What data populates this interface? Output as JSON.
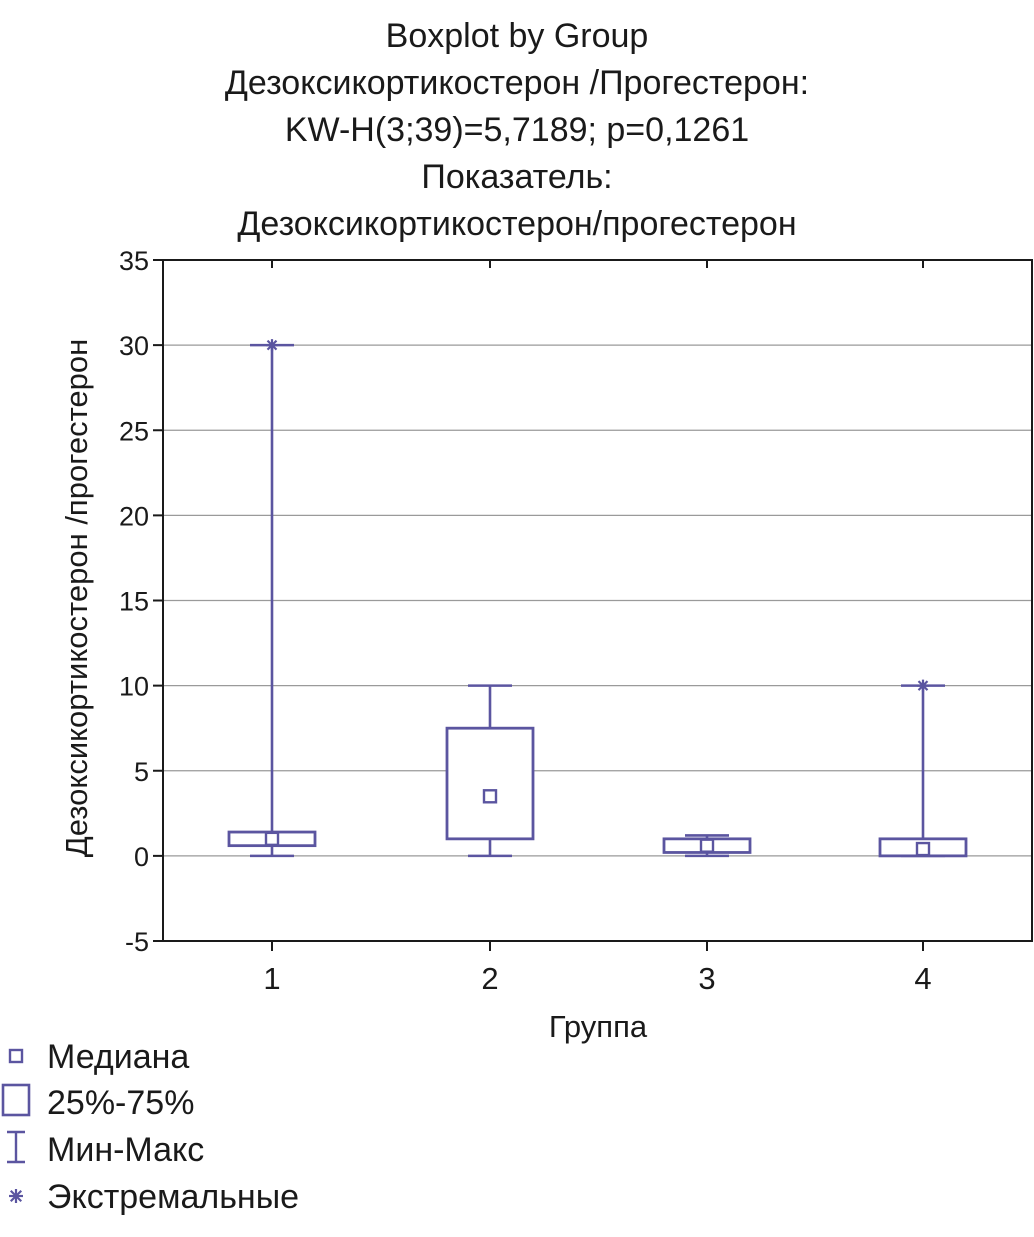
{
  "chart_data": {
    "type": "boxplot",
    "title_lines": [
      "Boxplot by Group",
      "Дезоксикортикостерон /Прогестерон:",
      "KW-H(3;39)=5,7189; p=0,1261",
      "Показатель:",
      "Дезоксикортикостерон/прогестерон"
    ],
    "xlabel": "Группа",
    "ylabel": "Дезоксикортикостерон /прогестерон",
    "ylim": [
      -5,
      35
    ],
    "yticks": [
      "35",
      "30",
      "25",
      "20",
      "15",
      "10",
      "5",
      "0",
      "-5"
    ],
    "ytick_values": [
      35,
      30,
      25,
      20,
      15,
      10,
      5,
      0,
      -5
    ],
    "categories": [
      "1",
      "2",
      "3",
      "4"
    ],
    "grid": true,
    "color": "#5b55a0",
    "series": [
      {
        "group": "1",
        "min": 0.0,
        "q1": 0.6,
        "median": 1.0,
        "q3": 1.4,
        "max": 30.0,
        "extreme": 30.0
      },
      {
        "group": "2",
        "min": 0.0,
        "q1": 1.0,
        "median": 3.5,
        "q3": 7.5,
        "max": 10.0,
        "extreme": null
      },
      {
        "group": "3",
        "min": 0.0,
        "q1": 0.2,
        "median": 0.6,
        "q3": 1.0,
        "max": 1.2,
        "extreme": null
      },
      {
        "group": "4",
        "min": 0.0,
        "q1": 0.0,
        "median": 0.4,
        "q3": 1.0,
        "max": 10.0,
        "extreme": 10.0
      }
    ],
    "legend": {
      "position": "bottom-left",
      "items": [
        {
          "symbol": "median",
          "label": "Медиана"
        },
        {
          "symbol": "box",
          "label": "25%-75%"
        },
        {
          "symbol": "whisker",
          "label": "Мин-Макс"
        },
        {
          "symbol": "extreme",
          "label": "Экстремальные"
        }
      ]
    }
  }
}
